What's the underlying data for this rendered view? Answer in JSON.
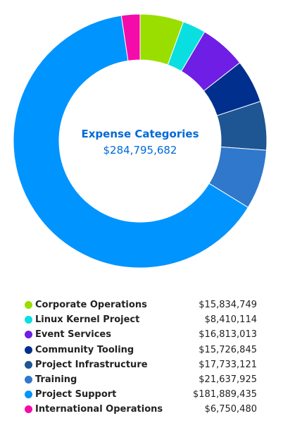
{
  "chart_data": {
    "type": "pie",
    "variant": "donut",
    "title": "Expense Categories",
    "total": "$284,795,682",
    "series": [
      {
        "name": "Corporate Operations",
        "value": 15834749,
        "value_label": "$15,834,749",
        "color": "#9ade00"
      },
      {
        "name": "Linux Kernel Project",
        "value": 8410114,
        "value_label": "$8,410,114",
        "color": "#09dfe0"
      },
      {
        "name": "Event Services",
        "value": 16813013,
        "value_label": "$16,813,013",
        "color": "#6e1ee5"
      },
      {
        "name": "Community Tooling",
        "value": 15726845,
        "value_label": "$15,726,845",
        "color": "#002f8e"
      },
      {
        "name": "Project Infrastructure",
        "value": 17733121,
        "value_label": "$17,733,121",
        "color": "#1e5593"
      },
      {
        "name": "Training",
        "value": 21637925,
        "value_label": "$21,637,925",
        "color": "#2f78cc"
      },
      {
        "name": "Project Support",
        "value": 181889435,
        "value_label": "$181,889,435",
        "color": "#0094ff"
      },
      {
        "name": "International Operations",
        "value": 6750480,
        "value_label": "$6,750,480",
        "color": "#f50ba9"
      }
    ],
    "legend_position": "bottom",
    "title_color": "#0069d8",
    "total_color": "#0069d8"
  }
}
